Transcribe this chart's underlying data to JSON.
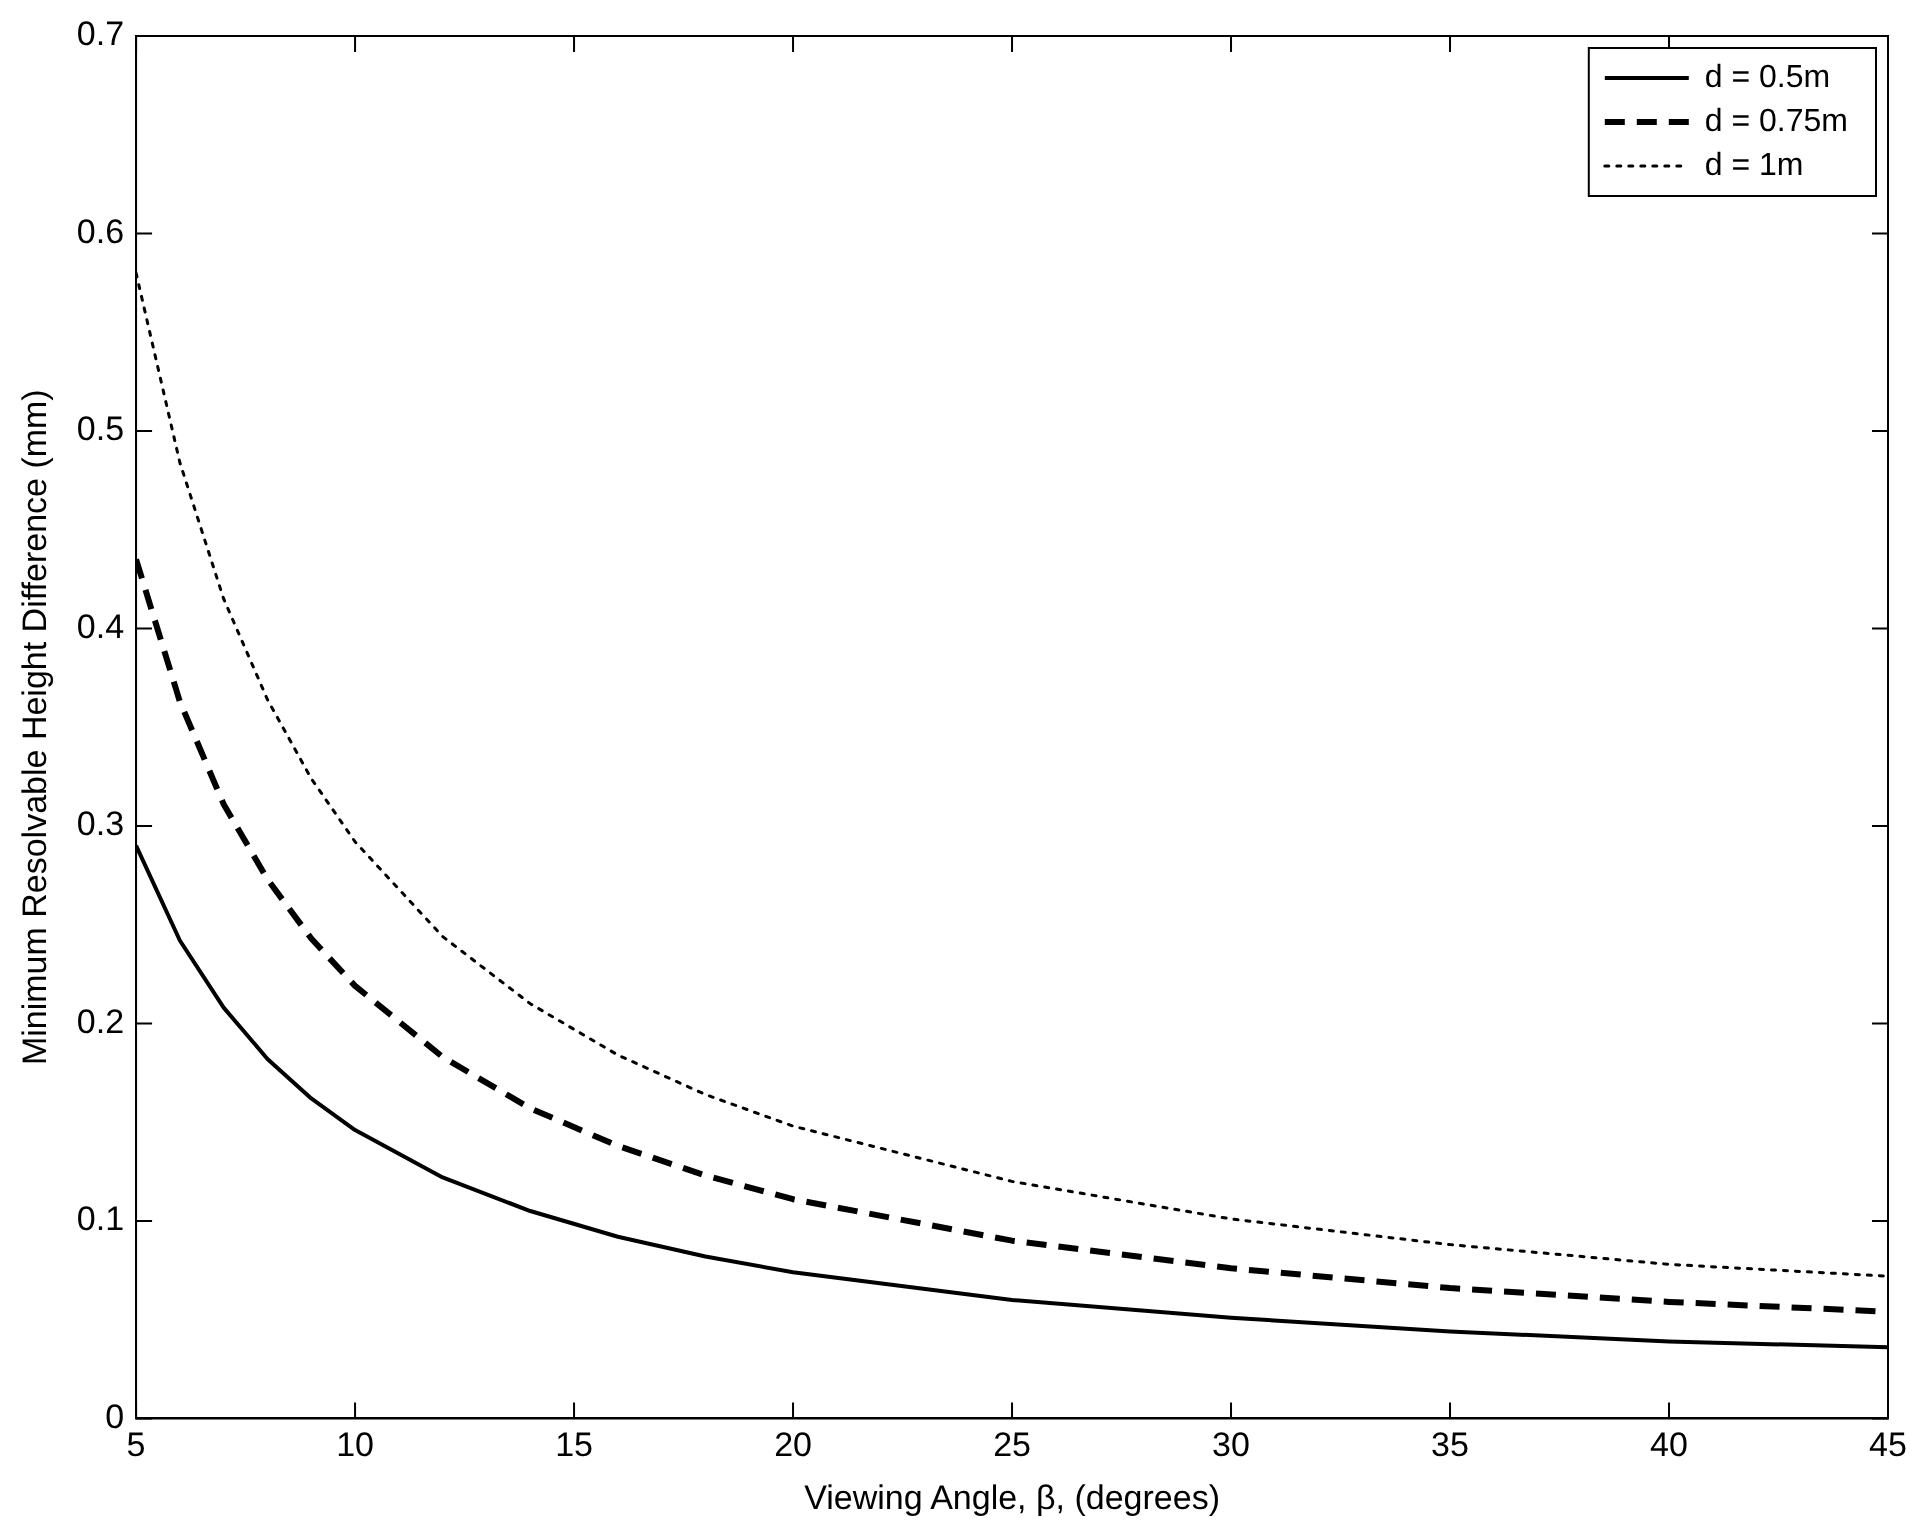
{
  "chart_data": {
    "type": "line",
    "xlabel": "Viewing Angle, β, (degrees)",
    "ylabel": "Minimum Resolvable Height Difference (mm)",
    "xlim": [
      5,
      45
    ],
    "xticks": [
      5,
      10,
      15,
      20,
      25,
      30,
      35,
      40,
      45
    ],
    "ylim": [
      0,
      0.7
    ],
    "yticks": [
      0,
      0.1,
      0.2,
      0.3,
      0.4,
      0.5,
      0.6,
      0.7
    ],
    "grid": false,
    "legend": "top right",
    "marker": "none",
    "x": [
      5,
      6,
      7,
      8,
      9,
      10,
      12,
      14,
      16,
      18,
      20,
      25,
      30,
      35,
      40,
      45
    ],
    "series": [
      {
        "name": "d = 0.5m",
        "color": "#000000",
        "line_style": "solid",
        "values": [
          0.29,
          0.242,
          0.208,
          0.182,
          0.162,
          0.146,
          0.122,
          0.105,
          0.092,
          0.082,
          0.074,
          0.06,
          0.051,
          0.044,
          0.039,
          0.036
        ]
      },
      {
        "name": "d = 0.75m",
        "color": "#000000",
        "line_style": "dashed",
        "values": [
          0.435,
          0.363,
          0.311,
          0.273,
          0.243,
          0.219,
          0.183,
          0.157,
          0.138,
          0.123,
          0.111,
          0.09,
          0.076,
          0.066,
          0.059,
          0.054
        ]
      },
      {
        "name": "d = 1m",
        "color": "#000000",
        "line_style": "dotted",
        "values": [
          0.58,
          0.484,
          0.415,
          0.364,
          0.324,
          0.292,
          0.244,
          0.21,
          0.184,
          0.164,
          0.148,
          0.12,
          0.101,
          0.088,
          0.078,
          0.072
        ]
      }
    ]
  }
}
